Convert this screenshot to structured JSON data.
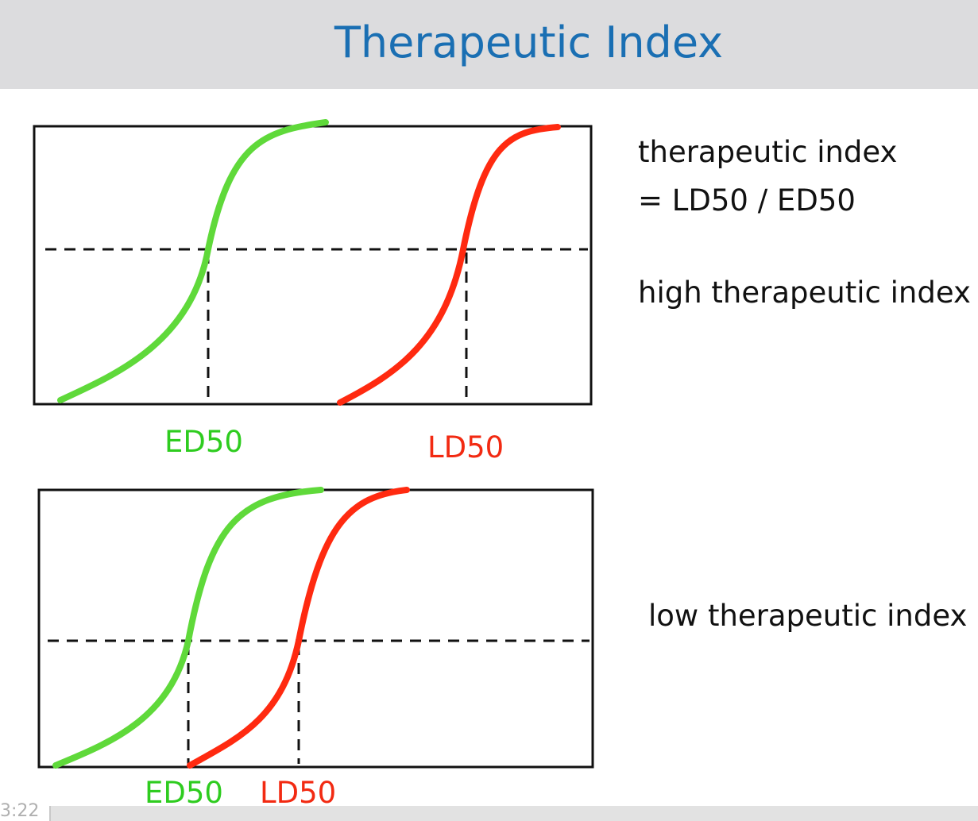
{
  "slide": {
    "title": "Therapeutic Index"
  },
  "notes": {
    "formula_line1": "therapeutic index",
    "formula_line2": "= LD50 / ED50",
    "high": "high therapeutic index",
    "low": "low therapeutic index"
  },
  "diagrams": [
    {
      "ed_label": "ED50",
      "ld_label": "LD50",
      "ed_color": "#5fd93a",
      "ld_color": "#ff2a10"
    },
    {
      "ed_label": "ED50",
      "ld_label": "LD50",
      "ed_color": "#5fd93a",
      "ld_color": "#ff2a10"
    }
  ],
  "player": {
    "timestamp": "3:22",
    "progress": 0.0
  }
}
